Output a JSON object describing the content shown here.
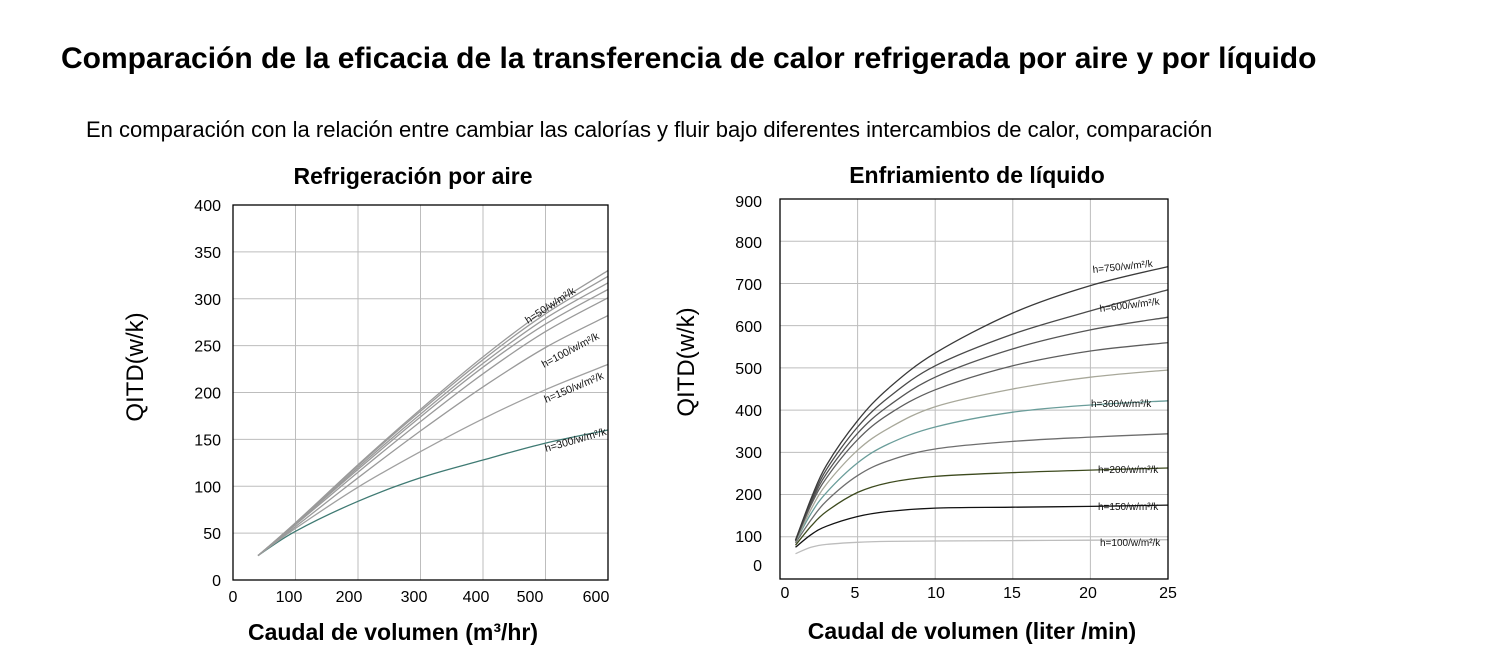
{
  "page": {
    "title": "Comparación de la eficacia de la transferencia de calor refrigerada por aire y por líquido",
    "subtitle": "En comparación con la relación entre cambiar las calorías y fluir bajo diferentes intercambios de calor, comparación"
  },
  "chart_data": [
    {
      "type": "line",
      "title": "Refrigeración por aire",
      "xlabel": "Caudal de volumen (m³/hr)",
      "ylabel": "QITD(w/k)",
      "xlim": [
        0,
        600
      ],
      "ylim": [
        0,
        400
      ],
      "x_ticks": [
        "0",
        "100",
        "200",
        "300",
        "400",
        "500",
        "600"
      ],
      "y_ticks": [
        "0",
        "50",
        "100",
        "150",
        "200",
        "250",
        "300",
        "350",
        "400"
      ],
      "grid": true,
      "series": [
        {
          "name": "h=50/w/m²/k",
          "color": "#3f7a73",
          "x": [
            40,
            100,
            200,
            300,
            400,
            500,
            600
          ],
          "y": [
            26,
            52,
            84,
            109,
            128,
            146,
            160
          ]
        },
        {
          "name": "h=100/w/m²/k",
          "color": "#a0a0a0",
          "x": [
            40,
            100,
            200,
            300,
            400,
            500,
            600
          ],
          "y": [
            26,
            55,
            99,
            137,
            172,
            203,
            230
          ]
        },
        {
          "name": "h=150/w/m²/k",
          "color": "#9a9a9a",
          "x": [
            40,
            100,
            200,
            300,
            400,
            500,
            600
          ],
          "y": [
            26,
            57,
            109,
            159,
            206,
            248,
            282
          ]
        },
        {
          "color": "#9a9a9a",
          "x": [
            40,
            100,
            200,
            300,
            400,
            500,
            600
          ],
          "y": [
            26,
            59,
            115,
            169,
            220,
            265,
            301
          ]
        },
        {
          "color": "#9a9a9a",
          "x": [
            40,
            100,
            200,
            300,
            400,
            500,
            600
          ],
          "y": [
            26,
            60,
            118,
            174,
            227,
            273,
            310
          ]
        },
        {
          "color": "#9a9a9a",
          "x": [
            40,
            100,
            200,
            300,
            400,
            500,
            600
          ],
          "y": [
            26,
            60,
            120,
            177,
            231,
            279,
            317
          ]
        },
        {
          "color": "#9a9a9a",
          "x": [
            40,
            100,
            200,
            300,
            400,
            500,
            600
          ],
          "y": [
            26,
            61,
            122,
            180,
            235,
            284,
            324
          ]
        },
        {
          "name": "h=300/w/m²/k",
          "color": "#9a9a9a",
          "x": [
            40,
            100,
            200,
            300,
            400,
            500,
            600
          ],
          "y": [
            26,
            61,
            123,
            182,
            238,
            288,
            330
          ]
        }
      ],
      "annotations": [
        "h=300/w/m²/k",
        "h=150/w/m²/k",
        "h=100/w/m²/k",
        "h=50/w/m²/k"
      ]
    },
    {
      "type": "line",
      "title": "Enfriamiento de líquido",
      "xlabel": "Caudal de volumen (liter /min)",
      "ylabel": "QITD(w/k)",
      "xlim": [
        0,
        25
      ],
      "ylim": [
        0,
        900
      ],
      "x_ticks": [
        "0",
        "5",
        "10",
        "15",
        "20",
        "25"
      ],
      "y_ticks": [
        "0",
        "100",
        "200",
        "300",
        "400",
        "500",
        "600",
        "700",
        "800",
        "900"
      ],
      "grid": true,
      "series": [
        {
          "name": "h=100/w/m²/k",
          "color": "#bdbdbd",
          "x": [
            1,
            2,
            3,
            5,
            7,
            10,
            15,
            20,
            25
          ],
          "y": [
            60,
            75,
            82,
            87,
            89,
            90,
            91,
            92,
            93
          ]
        },
        {
          "name": "h=150/w/m²/k",
          "color": "#111111",
          "x": [
            1,
            2,
            3,
            5,
            7,
            10,
            15,
            20,
            25
          ],
          "y": [
            75,
            105,
            125,
            148,
            160,
            168,
            170,
            172,
            175
          ]
        },
        {
          "name": "h=200/w/m²/k",
          "color": "#3d4a1e",
          "x": [
            1,
            2,
            3,
            5,
            7,
            10,
            15,
            20,
            25
          ],
          "y": [
            80,
            125,
            160,
            205,
            228,
            243,
            252,
            258,
            263
          ]
        },
        {
          "color": "#6e6e6e",
          "x": [
            1,
            2,
            3,
            5,
            7,
            10,
            15,
            20,
            25
          ],
          "y": [
            85,
            140,
            185,
            245,
            280,
            308,
            326,
            336,
            344
          ]
        },
        {
          "name": "h=300/w/m²/k",
          "color": "#6a9d9a",
          "x": [
            1,
            2,
            3,
            5,
            7,
            10,
            15,
            20,
            25
          ],
          "y": [
            88,
            155,
            205,
            275,
            320,
            360,
            395,
            412,
            422
          ]
        },
        {
          "color": "#a8a89a",
          "x": [
            1,
            2,
            3,
            5,
            7,
            10,
            15,
            20,
            25
          ],
          "y": [
            88,
            165,
            225,
            305,
            357,
            408,
            450,
            478,
            495
          ]
        },
        {
          "color": "#5e5e5e",
          "x": [
            1,
            2,
            3,
            5,
            7,
            10,
            15,
            20,
            25
          ],
          "y": [
            90,
            175,
            240,
            330,
            390,
            448,
            505,
            540,
            560
          ]
        },
        {
          "name": "h=600/w/m²/k",
          "color": "#555555",
          "x": [
            1,
            2,
            3,
            5,
            7,
            10,
            15,
            20,
            25
          ],
          "y": [
            90,
            180,
            250,
            345,
            410,
            478,
            545,
            590,
            620
          ]
        },
        {
          "color": "#4a4a4a",
          "x": [
            1,
            2,
            3,
            5,
            7,
            10,
            15,
            20,
            25
          ],
          "y": [
            92,
            185,
            260,
            360,
            430,
            505,
            580,
            635,
            685
          ]
        },
        {
          "name": "h=750/w/m²/k",
          "color": "#3a3a3a",
          "x": [
            1,
            2,
            3,
            5,
            7,
            10,
            15,
            20,
            25
          ],
          "y": [
            92,
            190,
            270,
            375,
            452,
            535,
            630,
            695,
            740
          ]
        }
      ],
      "annotations": [
        "h=750/w/m²/k",
        "h=600/w/m²/k",
        "h=300/w/m²/k",
        "h=200/w/m²/k",
        "h=150/w/m²/k",
        "h=100/w/m²/k"
      ]
    }
  ]
}
